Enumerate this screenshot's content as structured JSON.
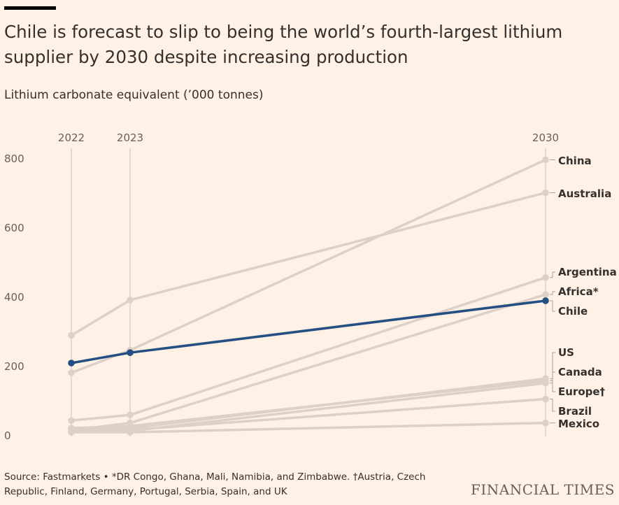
{
  "header": {
    "title": "Chile is forecast to slip to being the world’s fourth-largest lithium supplier by 2030 despite increasing production",
    "subtitle": "Lithium carbonate equivalent (’000 tonnes)"
  },
  "footer": {
    "source": "Source: Fastmarkets • *DR Congo, Ghana, Mali, Namibia, and Zimbabwe. †Austria, Czech Republic, Finland, Germany, Portugal, Serbia, Spain, and UK",
    "logo": "FINANCIAL TIMES"
  },
  "colors": {
    "background": "#FFF1E5",
    "muted_line": "#DCD0C7",
    "highlight": "#234F82",
    "axis_text": "#66605C",
    "label_text": "#33302E"
  },
  "chart_data": {
    "type": "line",
    "x": [
      "2022",
      "2023",
      "2030"
    ],
    "ylim": [
      0,
      800
    ],
    "yticks": [
      "0",
      "200",
      "400",
      "600",
      "800"
    ],
    "highlight_series": "Chile",
    "series": [
      {
        "name": "China",
        "values": [
          180,
          245,
          795
        ]
      },
      {
        "name": "Australia",
        "values": [
          288,
          390,
          700
        ]
      },
      {
        "name": "Argentina",
        "values": [
          42,
          58,
          455
        ]
      },
      {
        "name": "Africa*",
        "values": [
          14,
          35,
          406
        ]
      },
      {
        "name": "Chile",
        "values": [
          208,
          238,
          388
        ]
      },
      {
        "name": "US",
        "values": [
          15,
          20,
          163
        ]
      },
      {
        "name": "Canada",
        "values": [
          10,
          12,
          150
        ]
      },
      {
        "name": "Europe†",
        "values": [
          20,
          26,
          157
        ]
      },
      {
        "name": "Brazil",
        "values": [
          12,
          15,
          104
        ]
      },
      {
        "name": "Mexico",
        "values": [
          8,
          8,
          35
        ]
      }
    ]
  }
}
